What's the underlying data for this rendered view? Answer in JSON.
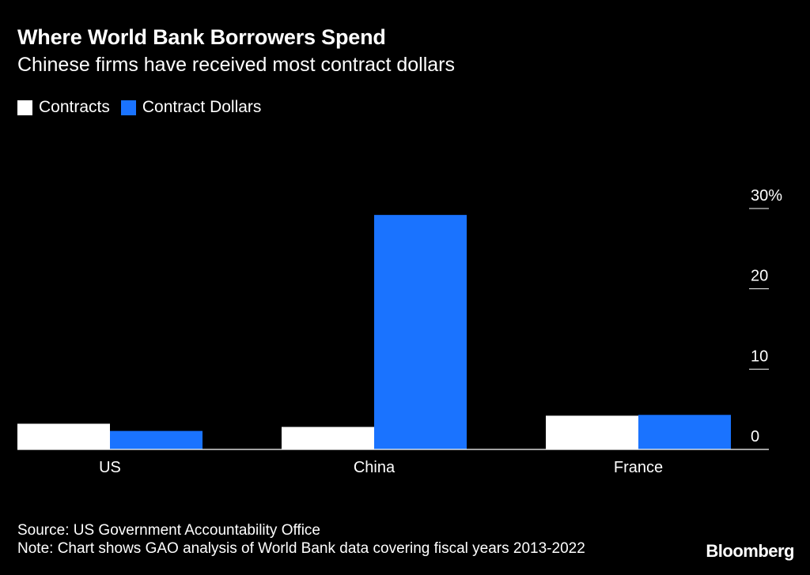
{
  "chart_data": {
    "type": "bar",
    "title": "Where World Bank Borrowers Spend",
    "subtitle": "Chinese firms have received most contract dollars",
    "categories": [
      "US",
      "China",
      "France"
    ],
    "series": [
      {
        "name": "Contracts",
        "color": "#ffffff",
        "values": [
          3.2,
          2.8,
          4.2
        ]
      },
      {
        "name": "Contract Dollars",
        "color": "#1a73ff",
        "values": [
          2.3,
          29.2,
          4.3
        ]
      }
    ],
    "ylim": [
      0,
      30
    ],
    "yticks": [
      0,
      10,
      20,
      30
    ],
    "ytick_labels": [
      "0",
      "10",
      "20",
      "30%"
    ],
    "y_axis_side": "right",
    "xlabel": "",
    "ylabel": ""
  },
  "footer": {
    "source": "Source: US Government Accountability Office",
    "note": "Note: Chart shows GAO analysis of World Bank data covering fiscal years 2013-2022"
  },
  "brand": "Bloomberg"
}
